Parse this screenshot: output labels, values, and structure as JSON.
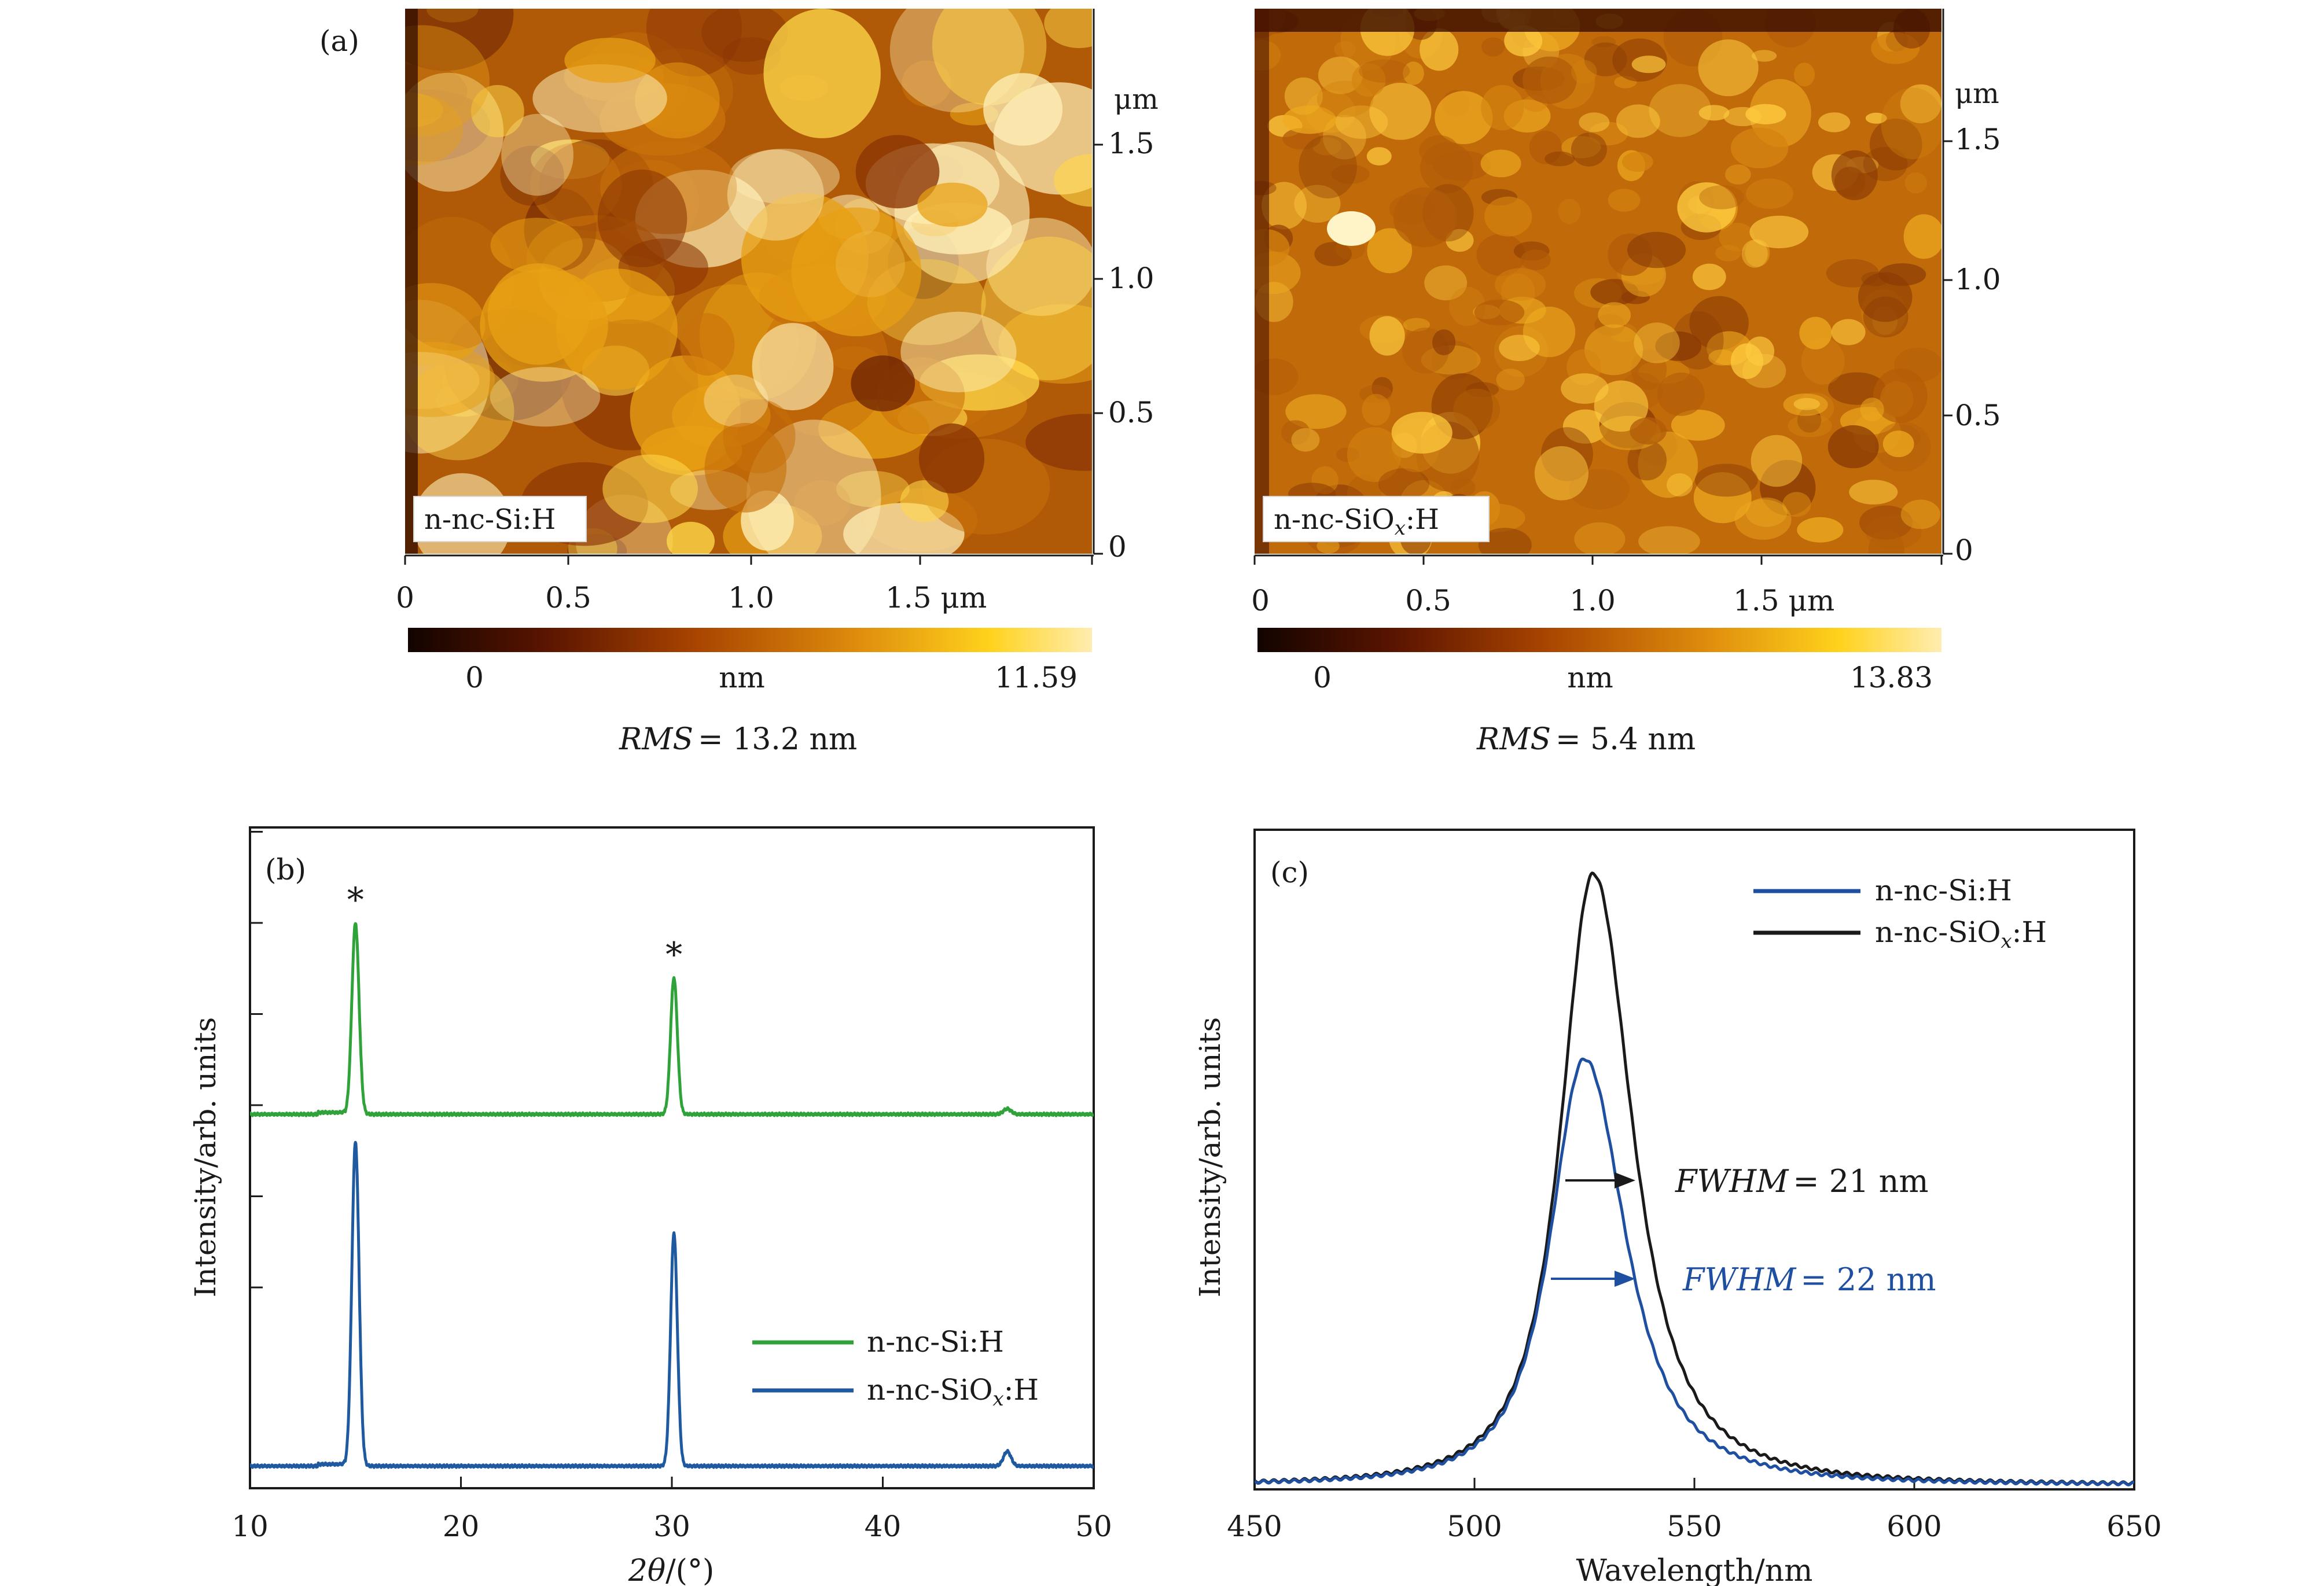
{
  "panel_a": {
    "label": "(a)",
    "left": {
      "sample_label": "n-nc-Si:H",
      "x_ticks": [
        "0",
        "0.5",
        "1.0",
        "1.5 μm"
      ],
      "y_ticks": [
        "0",
        "0.5",
        "1.0",
        "1.5"
      ],
      "y_unit": "μm",
      "colorbar": {
        "min": "0",
        "unit": "nm",
        "max": "11.59"
      },
      "rms_label": "RMS",
      "rms_value": "= 13.2 nm"
    },
    "right": {
      "sample_label_base": "n-nc-SiO",
      "sample_label_sub": "x",
      "sample_label_tail": ":H",
      "x_ticks": [
        "0",
        "0.5",
        "1.0",
        "1.5 μm"
      ],
      "y_ticks": [
        "0",
        "0.5",
        "1.0",
        "1.5"
      ],
      "y_unit": "μm",
      "colorbar": {
        "min": "0",
        "unit": "nm",
        "max": "13.83"
      },
      "rms_label": "RMS",
      "rms_value": "= 5.4 nm"
    },
    "colormap": [
      "#120400",
      "#5a1400",
      "#a84400",
      "#dd8a0c",
      "#ffd21c",
      "#ffedb0"
    ]
  },
  "chart_data": [
    {
      "type": "line",
      "panel": "(b)",
      "title": "",
      "xlabel_italic": "2θ",
      "xlabel_rest": "/(°)",
      "ylabel": "Intensity/arb. units",
      "xlim": [
        10,
        50
      ],
      "x_ticks": [
        "10",
        "20",
        "30",
        "40",
        "50"
      ],
      "y_tick_labels_shown": false,
      "series": [
        {
          "name": "n-nc-Si:H",
          "color": "#2fa33a",
          "baseline": 1.95,
          "peaks": [
            {
              "x": 15.0,
              "height": 1.05,
              "width": 0.17
            },
            {
              "x": 30.1,
              "height": 0.75,
              "width": 0.16
            },
            {
              "x": 45.9,
              "height": 0.03,
              "width": 0.18
            }
          ]
        },
        {
          "name_base": "n-nc-SiO",
          "name_sub": "x",
          "name_tail": ":H",
          "color": "#1f5aa0",
          "baseline": 0.02,
          "peaks": [
            {
              "x": 15.0,
              "height": 1.78,
              "width": 0.17
            },
            {
              "x": 30.1,
              "height": 1.28,
              "width": 0.16
            },
            {
              "x": 45.9,
              "height": 0.08,
              "width": 0.18
            }
          ]
        }
      ],
      "annotations": [
        {
          "text": "*",
          "x": 15.0
        },
        {
          "text": "*",
          "x": 30.1
        }
      ]
    },
    {
      "type": "line",
      "panel": "(c)",
      "title": "",
      "xlabel": "Wavelength/nm",
      "ylabel": "Intensity/arb. units",
      "xlim": [
        450,
        650
      ],
      "x_ticks": [
        "450",
        "500",
        "550",
        "600",
        "650"
      ],
      "y_tick_labels_shown": false,
      "series": [
        {
          "name": "n-nc-Si:H",
          "color": "#1f4fa0",
          "peak_x": 525,
          "peak_y": 0.92,
          "fwhm": 22
        },
        {
          "name_base": "n-nc-SiO",
          "name_sub": "x",
          "name_tail": ":H",
          "color": "#1a1a1a",
          "peak_x": 527,
          "peak_y": 1.32,
          "fwhm": 21
        }
      ],
      "annotations": [
        {
          "label": "FWHM",
          "value": "= 21 nm",
          "color": "#1a1a1a"
        },
        {
          "label": "FWHM",
          "value": "= 22 nm",
          "color": "#1f4fa0"
        }
      ]
    }
  ]
}
